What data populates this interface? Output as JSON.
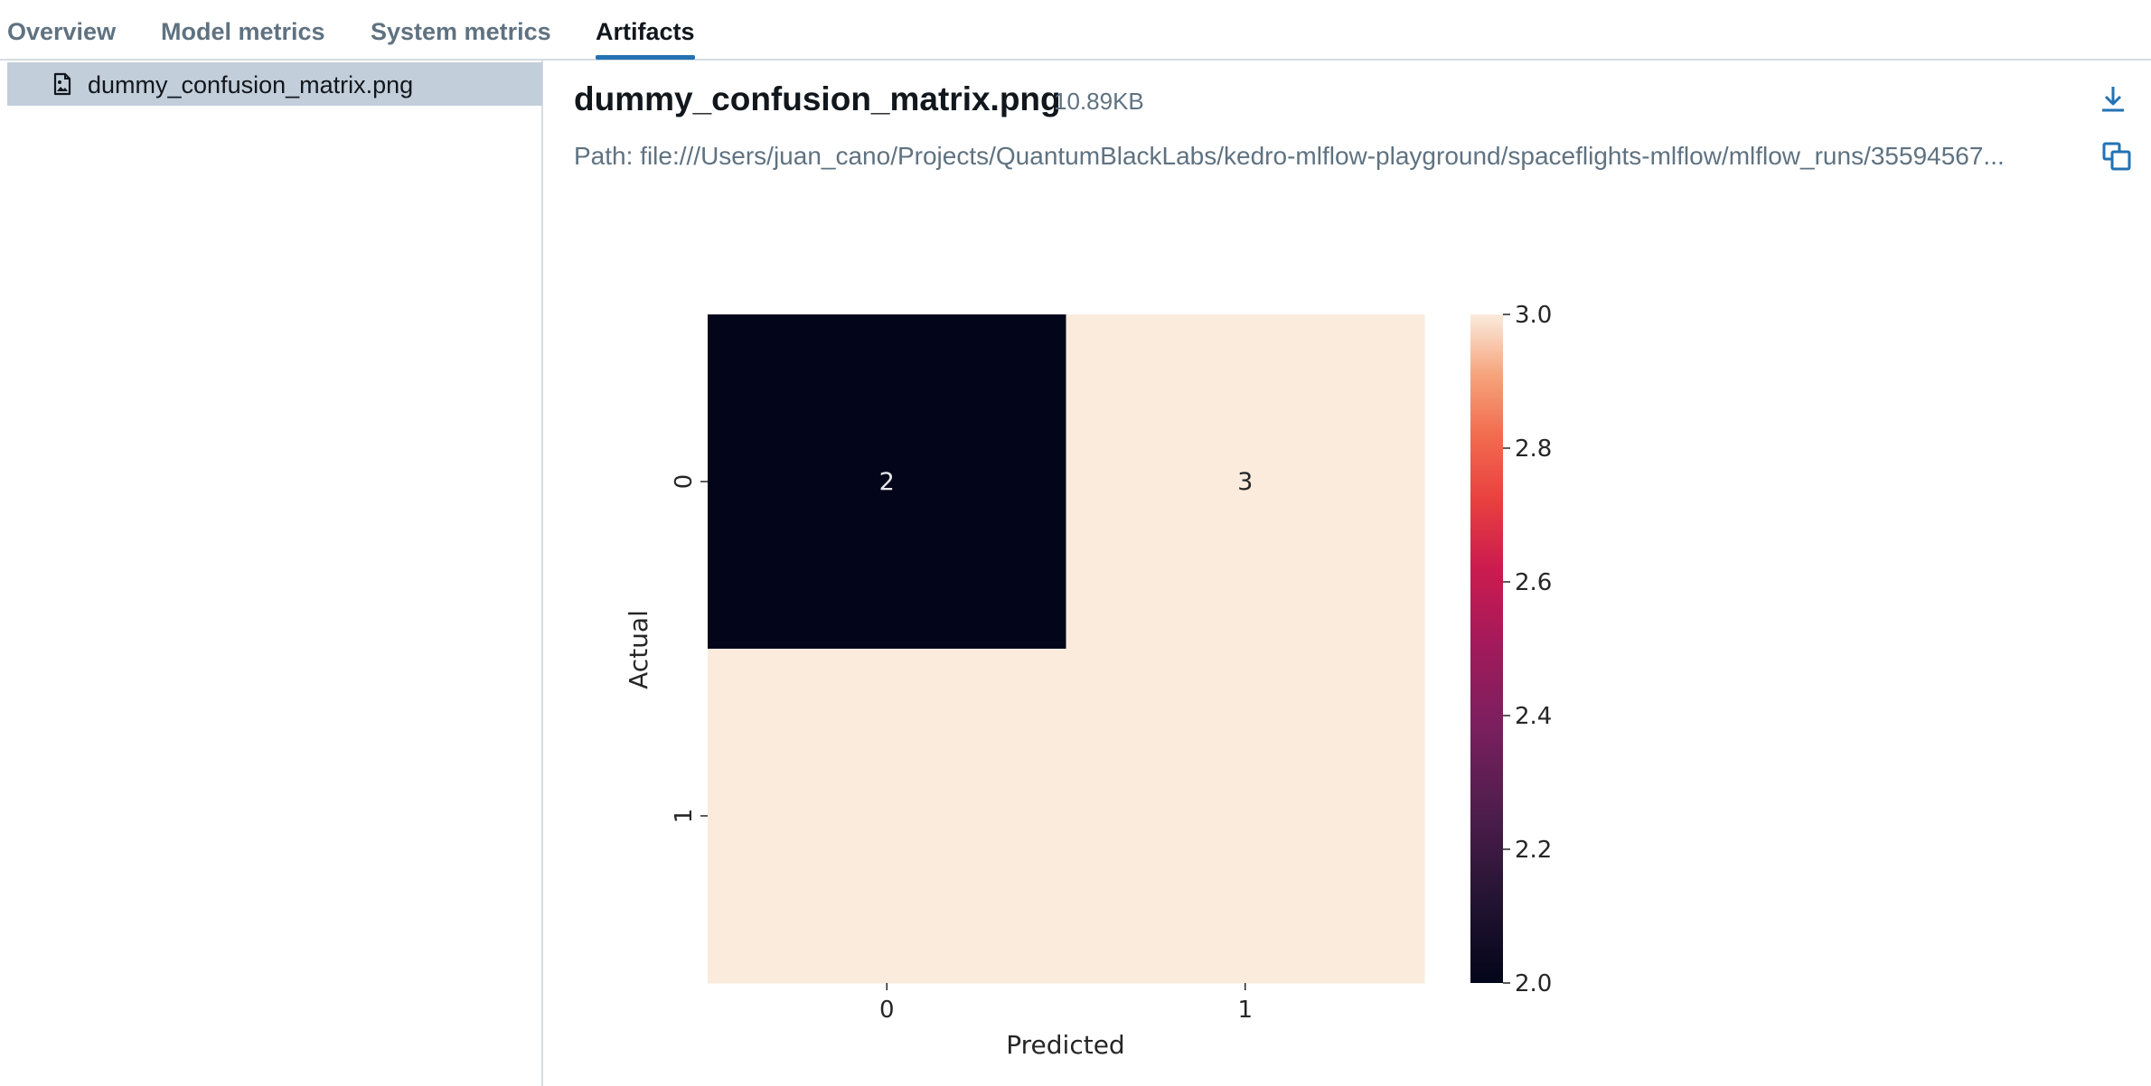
{
  "tabs": [
    {
      "label": "Overview",
      "active": false
    },
    {
      "label": "Model metrics",
      "active": false
    },
    {
      "label": "System metrics",
      "active": false
    },
    {
      "label": "Artifacts",
      "active": true
    }
  ],
  "sidebar": {
    "items": [
      {
        "label": "dummy_confusion_matrix.png",
        "icon": "image-file-icon",
        "selected": true
      }
    ]
  },
  "artifact": {
    "name": "dummy_confusion_matrix.png",
    "size": "10.89KB",
    "path": "Path: file:///Users/juan_cano/Projects/QuantumBlackLabs/kedro-mlflow-playground/spaceflights-mlflow/mlflow_runs/35594567...",
    "download_icon": "download-icon",
    "copy_icon": "copy-icon"
  },
  "colors": {
    "accent": "#2272b4",
    "selected_bg": "#c2ceda",
    "muted_text": "#5f7281"
  },
  "chart_data": {
    "type": "heatmap",
    "title": "",
    "xlabel": "Predicted",
    "ylabel": "Actual",
    "x_categories": [
      "0",
      "1"
    ],
    "y_categories": [
      "0",
      "1"
    ],
    "values": [
      [
        2,
        3
      ],
      [
        3,
        3
      ]
    ],
    "annotations": [
      [
        "2",
        "3"
      ],
      [
        "",
        ""
      ]
    ],
    "colorbar": {
      "min": 2.0,
      "max": 3.0,
      "ticks": [
        "2.0",
        "2.2",
        "2.4",
        "2.6",
        "2.8",
        "3.0"
      ],
      "colormap": "rocket"
    }
  }
}
